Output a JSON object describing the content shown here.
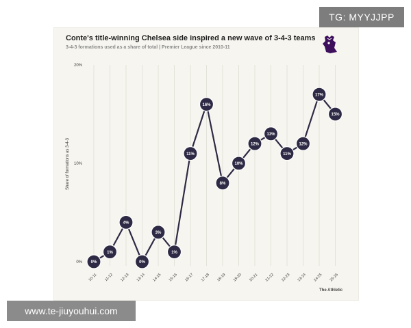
{
  "header": {
    "title": "Conte's title-winning Chelsea side inspired a new wave of 3-4-3 teams",
    "subtitle": "3-4-3 formations used as a share of total | Premier League since 2010-11"
  },
  "credit": "The Athletic",
  "logo": "premier-league-lion",
  "watermarks": {
    "top_right": "TG: MYYJJPP",
    "bottom_left": "www.te-jiuyouhui.com"
  },
  "colors": {
    "background": "#f6f5ef",
    "line": "#2e2a45",
    "marker": "#2e2a45",
    "marker_text": "#ffffff",
    "grid": "#d6d5cd"
  },
  "chart_data": {
    "type": "line",
    "title": "Conte's title-winning Chelsea side inspired a new wave of 3-4-3 teams",
    "subtitle": "3-4-3 formations used as a share of total | Premier League since 2010-11",
    "xlabel": "",
    "ylabel": "Share of formations as 3-4-3",
    "ylim": [
      0,
      20
    ],
    "yticks": [
      0,
      10,
      20
    ],
    "ytick_labels": [
      "0%",
      "10%",
      "20%"
    ],
    "grid": "vertical",
    "categories": [
      "10-11",
      "11-12",
      "12-13",
      "13-14",
      "14-15",
      "15-16",
      "16-17",
      "17-18",
      "18-19",
      "19-20",
      "20-21",
      "21-22",
      "22-23",
      "23-24",
      "24-25",
      "25-26"
    ],
    "values": [
      0,
      1,
      4,
      0,
      3,
      1,
      11,
      16,
      8,
      10,
      12,
      13,
      11,
      12,
      17,
      15
    ],
    "labels": [
      "0%",
      "1%",
      "4%",
      "0%",
      "3%",
      "1%",
      "11%",
      "16%",
      "8%",
      "10%",
      "12%",
      "13%",
      "11%",
      "12%",
      "17%",
      "15%"
    ]
  }
}
